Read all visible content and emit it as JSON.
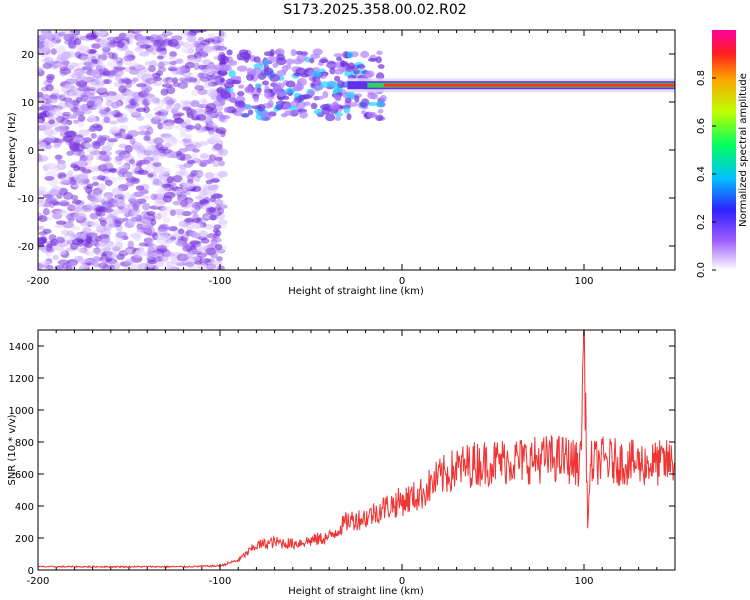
{
  "title": "S173.2025.358.00.02.R02",
  "chart_data": [
    {
      "type": "heatmap",
      "xlabel": "Height of straight line (km)",
      "ylabel": "Frequency (Hz)",
      "xlim": [
        -200,
        150
      ],
      "ylim": [
        -25,
        25
      ],
      "xticks": [
        -200,
        -100,
        0,
        100
      ],
      "yticks": [
        -20,
        -10,
        0,
        10,
        20
      ],
      "colorbar": {
        "label": "Normalized spectral amplitude",
        "range": [
          0,
          1
        ],
        "ticks": [
          0.0,
          0.2,
          0.4,
          0.6,
          0.8
        ]
      },
      "features": {
        "noise_region_x": [
          -200,
          -100
        ],
        "carrier_frequency_hz": 13.5,
        "carrier_onset_x": -100,
        "carrier_peak_start_x": -10
      }
    },
    {
      "type": "line",
      "xlabel": "Height of straight line (km)",
      "ylabel": "SNR (10 * v/v)",
      "xlim": [
        -200,
        150
      ],
      "ylim": [
        0,
        1500
      ],
      "xticks": [
        -200,
        -100,
        0,
        100
      ],
      "yticks": [
        0,
        200,
        400,
        600,
        800,
        1000,
        1200,
        1400
      ],
      "line_color": "#f03333",
      "series": [
        {
          "x": [
            -200,
            -160,
            -120,
            -100,
            -90,
            -80,
            -70,
            -60,
            -50,
            -40,
            -30,
            -20,
            -10,
            0,
            10,
            20,
            30,
            40,
            50,
            60,
            70,
            80,
            90,
            98,
            100,
            102,
            104,
            110,
            120,
            130,
            140,
            150
          ],
          "values": [
            20,
            20,
            20,
            25,
            60,
            150,
            170,
            160,
            180,
            200,
            300,
            320,
            380,
            420,
            460,
            560,
            620,
            650,
            660,
            670,
            670,
            680,
            680,
            640,
            1480,
            300,
            650,
            670,
            660,
            650,
            650,
            660
          ]
        }
      ]
    }
  ]
}
